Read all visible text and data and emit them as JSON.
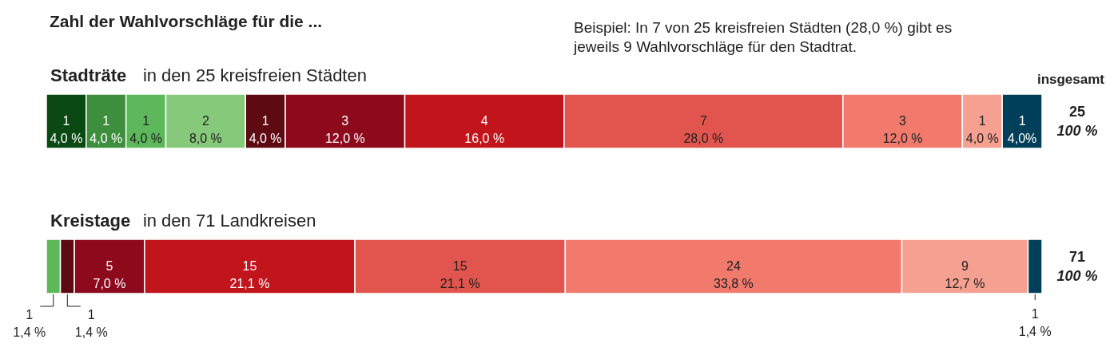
{
  "chart_data": [
    {
      "type": "bar",
      "orientation": "horizontal",
      "stacked": true,
      "title": "Zahl der Wahlvorschläge für die ...",
      "subtitle": "Stadträte in den 25 kreisfreien Städten",
      "categories": [
        null
      ],
      "series": [
        {
          "color": "#0a4a12",
          "values": [
            1
          ],
          "value_labels": [
            "1\n4,0 %"
          ]
        },
        {
          "color": "#3d8f3d",
          "values": [
            1
          ],
          "value_labels": [
            "1\n4,0 %"
          ]
        },
        {
          "color": "#5cb85a",
          "values": [
            1
          ],
          "value_labels": [
            "1\n4,0 %"
          ]
        },
        {
          "color": "#86c97a",
          "values": [
            2
          ],
          "value_labels": [
            "2\n8,0 %"
          ]
        },
        {
          "color": "#5e0a12",
          "values": [
            1
          ],
          "value_labels": [
            "1\n4,0 %"
          ]
        },
        {
          "color": "#8c0a1c",
          "values": [
            3
          ],
          "value_labels": [
            "3\n12,0 %"
          ]
        },
        {
          "color": "#c2141b",
          "values": [
            4
          ],
          "value_labels": [
            "4\n16,0 %"
          ]
        },
        {
          "color": "#e2554f",
          "values": [
            7
          ],
          "value_labels": [
            "7\n28,0 %"
          ]
        },
        {
          "color": "#f17a6d",
          "values": [
            3
          ],
          "value_labels": [
            "3\n12,0 %"
          ]
        },
        {
          "color": "#f5a090",
          "values": [
            1
          ],
          "value_labels": [
            "1\n4,0 %"
          ]
        },
        {
          "color": "#003f5a",
          "values": [
            1
          ],
          "value_labels": [
            "1\n4,0%"
          ]
        }
      ],
      "totals": [
        "25"
      ],
      "annotations": [
        "100 %",
        "insgesamt",
        "Beispiel: In 7 von 25 kreisfreien Städten (28,0 %) gibt es\njeweils 9 Wahlvorschläge für den Stadtrat."
      ]
    },
    {
      "type": "bar",
      "orientation": "horizontal",
      "stacked": true,
      "subtitle": "Kreistage in den 71 Landkreisen",
      "categories": [
        null
      ],
      "series": [
        {
          "color": "#5cb85a",
          "values": [
            1
          ],
          "value_labels": [
            "1\n1,4 %"
          ]
        },
        {
          "color": "#5e0a12",
          "values": [
            1
          ],
          "value_labels": [
            "1\n1,4 %"
          ]
        },
        {
          "color": "#8c0a1c",
          "values": [
            5
          ],
          "value_labels": [
            "5\n7,0 %"
          ]
        },
        {
          "color": "#c2141b",
          "values": [
            15
          ],
          "value_labels": [
            "15\n21,1 %"
          ]
        },
        {
          "color": "#e2554f",
          "values": [
            15
          ],
          "value_labels": [
            "15\n21,1 %"
          ]
        },
        {
          "color": "#f17a6d",
          "values": [
            24
          ],
          "value_labels": [
            "24\n33,8 %"
          ]
        },
        {
          "color": "#f5a090",
          "values": [
            9
          ],
          "value_labels": [
            "9\n12,7 %"
          ]
        },
        {
          "color": "#003f5a",
          "values": [
            1
          ],
          "value_labels": [
            "1\n1,4 %"
          ]
        }
      ],
      "totals": [
        "71"
      ],
      "annotations": [
        "100 %"
      ]
    }
  ]
}
